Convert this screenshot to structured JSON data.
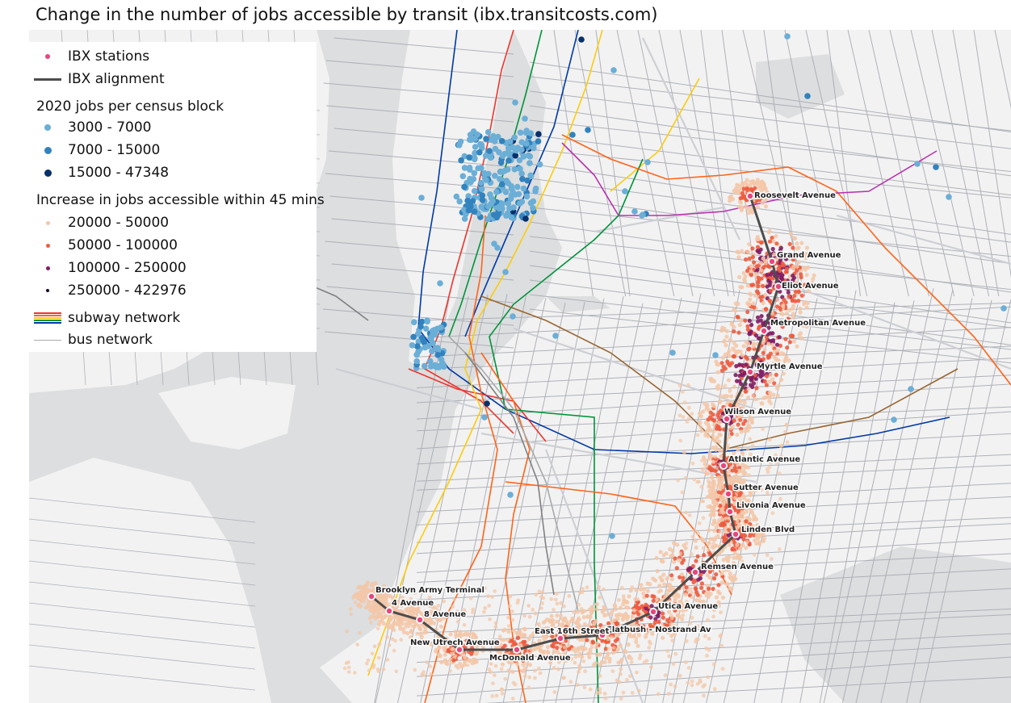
{
  "title": "Change in the number of jobs accessible by transit (ibx.transitcosts.com)",
  "legend": {
    "ibx_stations": "IBX stations",
    "ibx_alignment": "IBX alignment",
    "jobs_heading": "2020 jobs per census block",
    "jobs_classes": [
      {
        "label": "3000 - 7000",
        "color": "#6baed6"
      },
      {
        "label": "7000 - 15000",
        "color": "#3182bd"
      },
      {
        "label": "15000 - 47348",
        "color": "#08306b"
      }
    ],
    "access_heading": "Increase in jobs accessible within 45 mins",
    "access_classes": [
      {
        "label": "20000 - 50000",
        "color": "#f3c7a8"
      },
      {
        "label": "50000 - 100000",
        "color": "#ee5b3e"
      },
      {
        "label": "100000 - 250000",
        "color": "#7f1d64"
      },
      {
        "label": "250000 - 422976",
        "color": "#1a0b2e"
      }
    ],
    "subway_network": "subway network",
    "bus_network": "bus network"
  },
  "colors": {
    "station": "#e8467c",
    "alignment": "#4d4d4d",
    "water": "#dcdedf",
    "land": "#f2f2f2",
    "bus": "#a8abb3"
  },
  "stations": [
    {
      "name": "Roosevelt Avenue"
    },
    {
      "name": "Grand Avenue"
    },
    {
      "name": "Eliot Avenue"
    },
    {
      "name": "Metropolitan Avenue"
    },
    {
      "name": "Myrtle Avenue"
    },
    {
      "name": "Wilson Avenue"
    },
    {
      "name": "Atlantic Avenue"
    },
    {
      "name": "Sutter Avenue"
    },
    {
      "name": "Livonia Avenue"
    },
    {
      "name": "Linden Blvd"
    },
    {
      "name": "Remsen Avenue"
    },
    {
      "name": "Utica Avenue"
    },
    {
      "name": "Flatbush - Nostrand Av"
    },
    {
      "name": "East 16th Street"
    },
    {
      "name": "McDonald Avenue"
    },
    {
      "name": "New Utrech Avenue"
    },
    {
      "name": "8 Avenue"
    },
    {
      "name": "4 Avenue"
    },
    {
      "name": "Brooklyn Army Terminal"
    }
  ]
}
